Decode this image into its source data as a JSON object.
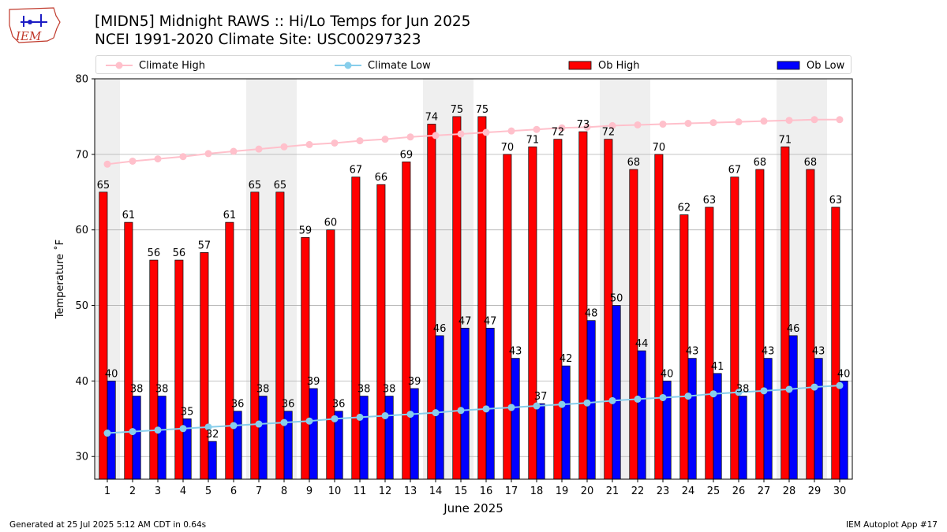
{
  "header": {
    "title_line1": "[MIDN5] Midnight RAWS :: Hi/Lo Temps for Jun 2025",
    "title_line2": "NCEI 1991-2020 Climate Site: USC00297323",
    "logo_text": "IEM"
  },
  "footer": {
    "generated": "Generated at 25 Jul 2025 5:12 AM CDT in 0.64s",
    "app": "IEM Autoplot App #17"
  },
  "legend": {
    "climate_high": "Climate High",
    "climate_low": "Climate Low",
    "ob_high": "Ob High",
    "ob_low": "Ob Low",
    "placement": "top (above plot, single row)"
  },
  "colors": {
    "ob_high": "#ff0000",
    "ob_low": "#0000ff",
    "climate_high": "#ffc0cb",
    "climate_low": "#87ceeb",
    "weekend_shade": "#efefef",
    "grid": "#b0b0b0"
  },
  "chart_data": {
    "type": "bar",
    "xlabel": "June 2025",
    "ylabel": "Temperature ˚F",
    "ylim": [
      27,
      80
    ],
    "yticks": [
      30,
      40,
      50,
      60,
      70,
      80
    ],
    "grid": "horizontal",
    "categories": [
      "1",
      "2",
      "3",
      "4",
      "5",
      "6",
      "7",
      "8",
      "9",
      "10",
      "11",
      "12",
      "13",
      "14",
      "15",
      "16",
      "17",
      "18",
      "19",
      "20",
      "21",
      "22",
      "23",
      "24",
      "25",
      "26",
      "27",
      "28",
      "29",
      "30"
    ],
    "shaded_days": [
      1,
      7,
      8,
      14,
      15,
      21,
      22,
      28,
      29
    ],
    "series": [
      {
        "name": "Ob High",
        "kind": "bar",
        "values": [
          65,
          61,
          56,
          56,
          57,
          61,
          65,
          65,
          59,
          60,
          67,
          66,
          69,
          74,
          75,
          75,
          70,
          71,
          72,
          73,
          72,
          68,
          70,
          62,
          63,
          67,
          68,
          71,
          68,
          63
        ]
      },
      {
        "name": "Ob Low",
        "kind": "bar",
        "values": [
          40,
          38,
          38,
          35,
          32,
          36,
          38,
          36,
          39,
          36,
          38,
          38,
          39,
          46,
          47,
          47,
          43,
          37,
          42,
          48,
          50,
          44,
          40,
          43,
          41,
          38,
          43,
          46,
          43,
          40
        ]
      },
      {
        "name": "Climate High",
        "kind": "line",
        "values": [
          68.7,
          69.1,
          69.4,
          69.7,
          70.1,
          70.4,
          70.7,
          71.0,
          71.3,
          71.5,
          71.8,
          72.0,
          72.3,
          72.5,
          72.7,
          72.9,
          73.1,
          73.3,
          73.5,
          73.6,
          73.8,
          73.9,
          74.0,
          74.1,
          74.2,
          74.3,
          74.4,
          74.5,
          74.6,
          74.6
        ]
      },
      {
        "name": "Climate Low",
        "kind": "line",
        "values": [
          33.1,
          33.3,
          33.5,
          33.7,
          33.9,
          34.1,
          34.3,
          34.5,
          34.7,
          35.0,
          35.2,
          35.4,
          35.6,
          35.8,
          36.1,
          36.3,
          36.5,
          36.7,
          36.9,
          37.1,
          37.4,
          37.6,
          37.8,
          38.0,
          38.3,
          38.5,
          38.7,
          38.9,
          39.2,
          39.4
        ]
      }
    ]
  }
}
